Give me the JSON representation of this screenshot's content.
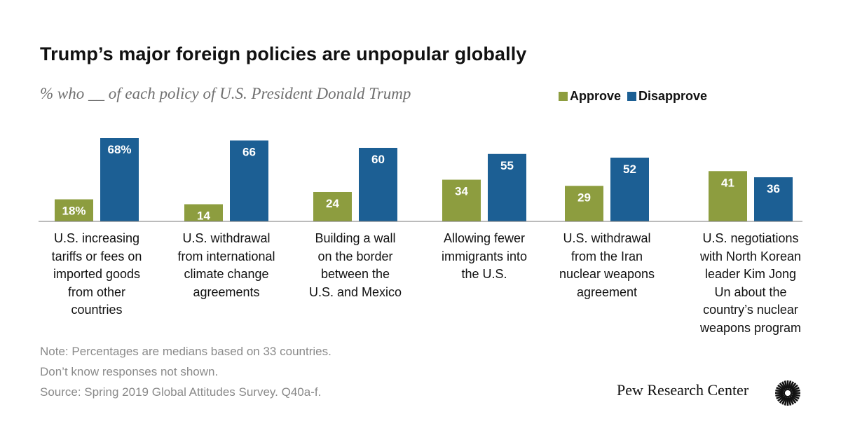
{
  "title": "Trump’s major foreign policies are unpopular globally",
  "subtitle": "% who __ of each policy of U.S. President Donald Trump",
  "legend": {
    "approve": "Approve",
    "disapprove": "Disapprove"
  },
  "colors": {
    "approve": "#8d9d3f",
    "disapprove": "#1c5f94",
    "baseline": "#777777"
  },
  "chart_data": {
    "type": "bar",
    "title": "Trump’s major foreign policies are unpopular globally",
    "subtitle": "% who __ of each policy of U.S. President Donald Trump",
    "categories": [
      "U.S. increasing tariffs or fees on imported goods from other countries",
      "U.S. withdrawal from international climate change agreements",
      "Building a wall on the border between the U.S. and Mexico",
      "Allowing fewer immigrants into the U.S.",
      "U.S. withdrawal from the Iran nuclear weapons agreement",
      "U.S. negotiations with North Korean leader Kim Jong Un about the country’s nuclear weapons program"
    ],
    "category_lines": [
      [
        "U.S. increasing",
        "tariffs or fees on",
        "imported goods",
        "from other",
        "countries"
      ],
      [
        "U.S. withdrawal",
        "from international",
        "climate change",
        "agreements"
      ],
      [
        "Building a wall",
        "on the border",
        "between the",
        "U.S. and Mexico"
      ],
      [
        "Allowing fewer",
        "immigrants into",
        "the U.S."
      ],
      [
        "U.S. withdrawal",
        "from the Iran",
        "nuclear weapons",
        "agreement"
      ],
      [
        "U.S. negotiations",
        "with North Korean",
        "leader Kim Jong",
        "Un about the",
        "country’s nuclear",
        "weapons program"
      ]
    ],
    "series": [
      {
        "name": "Approve",
        "values": [
          18,
          14,
          24,
          34,
          29,
          41
        ],
        "labels": [
          "18%",
          "14",
          "24",
          "34",
          "29",
          "41"
        ]
      },
      {
        "name": "Disapprove",
        "values": [
          68,
          66,
          60,
          55,
          52,
          36
        ],
        "labels": [
          "68%",
          "66",
          "60",
          "55",
          "52",
          "36"
        ]
      }
    ],
    "ylim": [
      0,
      68
    ],
    "xlabel": "",
    "ylabel": "",
    "grid": false,
    "legend_position": "top-right"
  },
  "notes": [
    "Note: Percentages are medians based on 33 countries.",
    "Don’t know responses not shown.",
    "Source: Spring 2019 Global Attitudes Survey. Q40a-f."
  ],
  "brand": "Pew Research Center",
  "brand_icon": "pew-sunburst-icon"
}
